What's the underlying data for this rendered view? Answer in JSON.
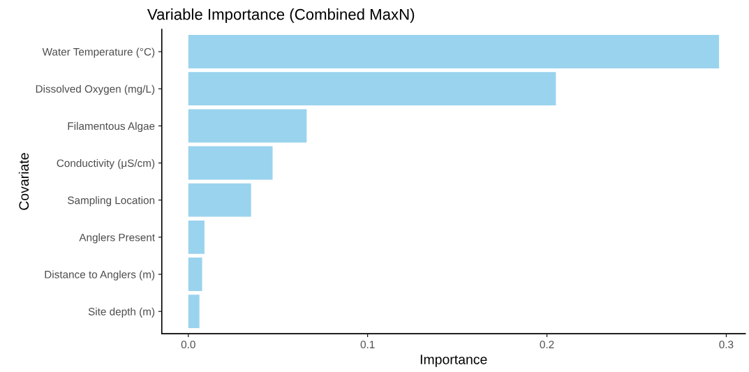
{
  "chart_data": {
    "type": "bar",
    "orientation": "horizontal",
    "title": "Variable Importance (Combined MaxN)",
    "xlabel": "Importance",
    "ylabel": "Covariate",
    "categories": [
      "Water Temperature (°C)",
      "Dissolved Oxygen (mg/L)",
      "Filamentous Algae",
      "Conductivity (μS/cm)",
      "Sampling Location",
      "Anglers Present",
      "Distance to Anglers (m)",
      "Site depth (m)"
    ],
    "values": [
      0.296,
      0.205,
      0.066,
      0.047,
      0.035,
      0.009,
      0.0077,
      0.0062
    ],
    "color": "#9ad3ee",
    "xlim": [
      -0.0148,
      0.3106
    ],
    "xticks": [
      {
        "value": 0,
        "label": "0.0"
      },
      0.1,
      0.2,
      0.3
    ],
    "grid": false,
    "legend": false
  }
}
